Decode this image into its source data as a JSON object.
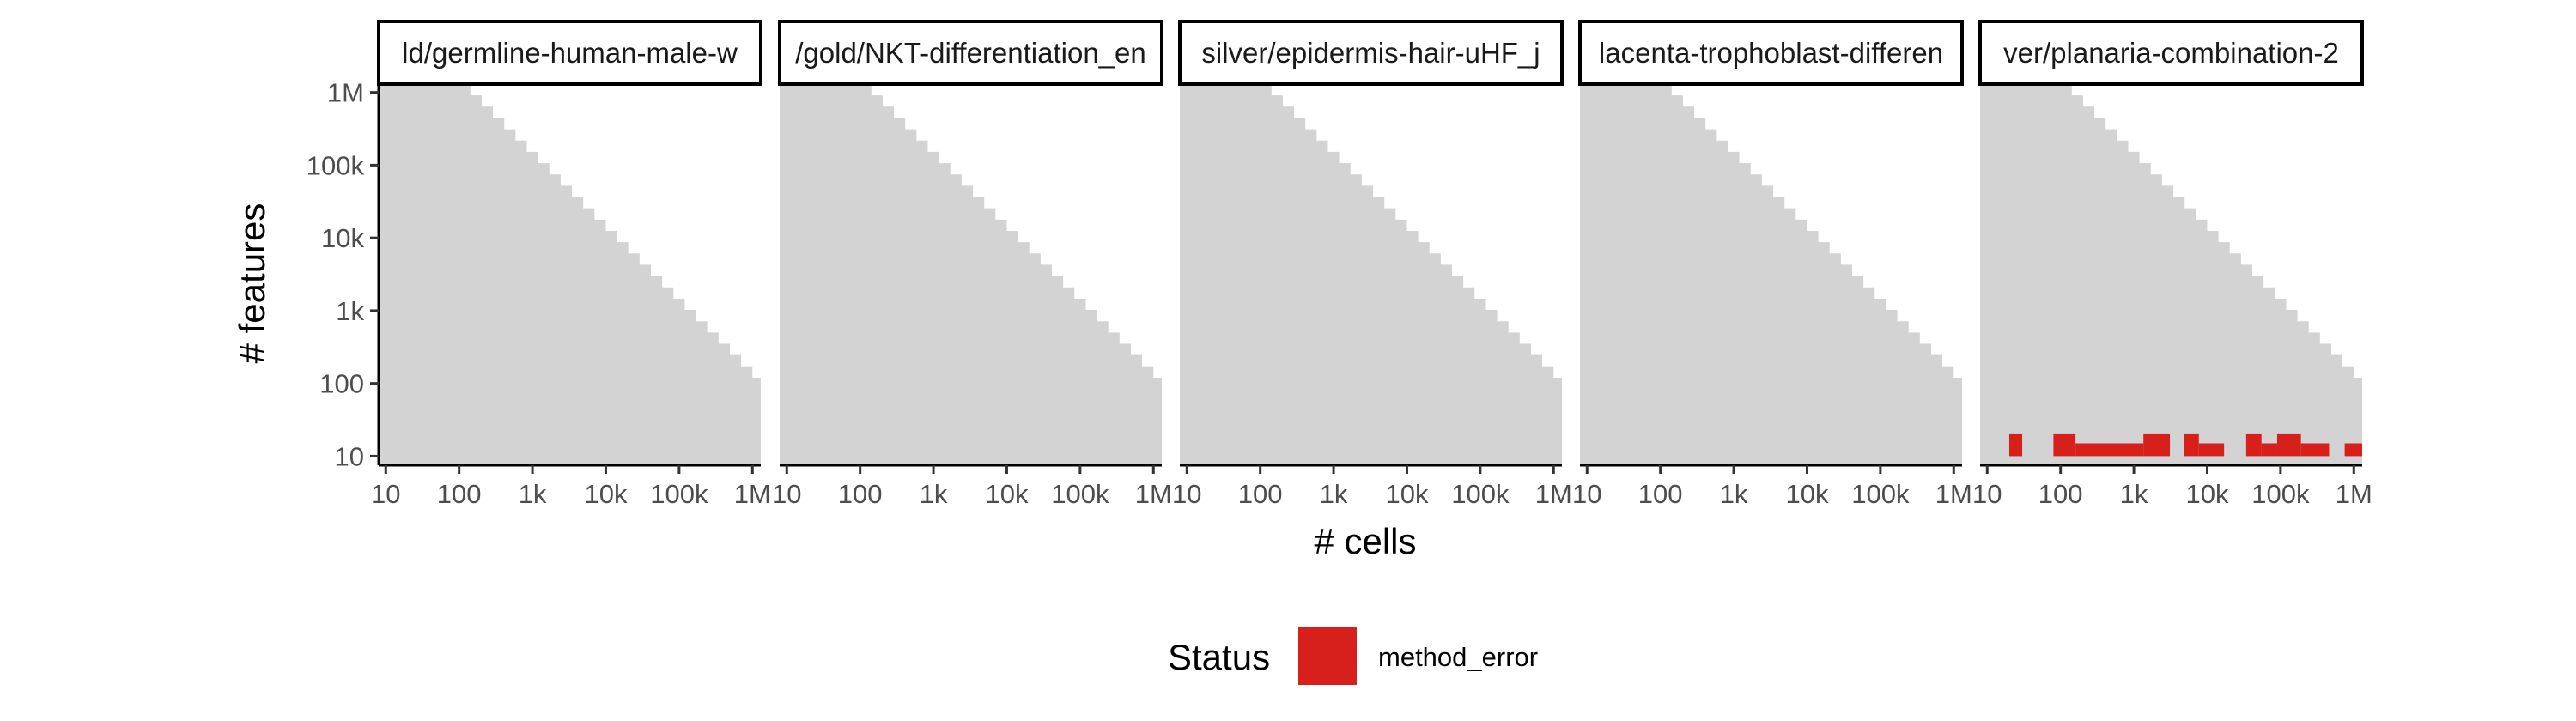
{
  "chart_data": {
    "type": "heatmap",
    "xlabel": "# cells",
    "ylabel": "# features",
    "x_scale": "log10",
    "y_scale": "log10",
    "x_ticks": [
      10,
      100,
      1000,
      10000,
      100000,
      1000000
    ],
    "x_tick_labels": [
      "10",
      "100",
      "1k",
      "10k",
      "100k",
      "1M"
    ],
    "y_ticks": [
      10,
      100,
      1000,
      10000,
      100000,
      1000000
    ],
    "y_tick_labels": [
      "10",
      "100",
      "1k",
      "10k",
      "100k",
      "1M"
    ],
    "xlim": [
      8,
      1300000
    ],
    "ylim": [
      7.5,
      1300000
    ],
    "background_region_color": "#d3d3d3",
    "staircase_edge": [
      {
        "x": 8,
        "y": 1300000
      },
      {
        "x": 100,
        "y": 1300000
      },
      {
        "x": 1000000,
        "y": 120
      }
    ],
    "grid": false,
    "legend": {
      "title": "Status",
      "position": "bottom",
      "entries": [
        {
          "label": "method_error",
          "color": "#d7201b"
        }
      ]
    },
    "panels": [
      {
        "title": "ld/germline-human-male-w",
        "cells": []
      },
      {
        "title": "/gold/NKT-differentiation_en",
        "cells": []
      },
      {
        "title": "silver/epidermis-hair-uHF_j",
        "cells": []
      },
      {
        "title": "lacenta-trophoblast-differen",
        "cells": []
      },
      {
        "title": "ver/planaria-combination-2",
        "cells": [
          {
            "x": [
              20,
              30
            ],
            "y": [
              10,
              20
            ],
            "status": "method_error"
          },
          {
            "x": [
              80,
              160
            ],
            "y": [
              10,
              20
            ],
            "status": "method_error"
          },
          {
            "x": [
              160,
              1350
            ],
            "y": [
              10,
              15
            ],
            "status": "method_error"
          },
          {
            "x": [
              1350,
              3100
            ],
            "y": [
              10,
              20
            ],
            "status": "method_error"
          },
          {
            "x": [
              4800,
              7700
            ],
            "y": [
              10,
              20
            ],
            "status": "method_error"
          },
          {
            "x": [
              7700,
              17000
            ],
            "y": [
              10,
              15
            ],
            "status": "method_error"
          },
          {
            "x": [
              34000,
              55000
            ],
            "y": [
              10,
              20
            ],
            "status": "method_error"
          },
          {
            "x": [
              55000,
              90000
            ],
            "y": [
              10,
              15
            ],
            "status": "method_error"
          },
          {
            "x": [
              90000,
              190000
            ],
            "y": [
              10,
              20
            ],
            "status": "method_error"
          },
          {
            "x": [
              190000,
              460000
            ],
            "y": [
              10,
              15
            ],
            "status": "method_error"
          },
          {
            "x": [
              750000,
              1300000
            ],
            "y": [
              10,
              15
            ],
            "status": "method_error"
          }
        ]
      }
    ]
  }
}
